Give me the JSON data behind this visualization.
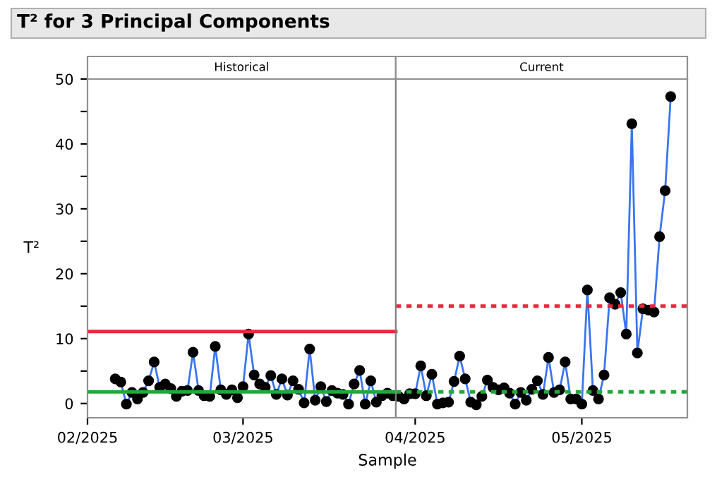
{
  "chart_data": {
    "type": "line",
    "title": "T² for 3 Principal Components",
    "xlabel": "Sample",
    "ylabel": "T²",
    "xlim": [
      "2025-02-01",
      "2025-05-20"
    ],
    "xticks": [
      {
        "value": "2025-02-01",
        "label": "02/2025"
      },
      {
        "value": "2025-03-01",
        "label": "03/2025"
      },
      {
        "value": "2025-04-01",
        "label": "04/2025"
      },
      {
        "value": "2025-05-01",
        "label": "05/2025"
      }
    ],
    "ylim": [
      -2.2,
      50
    ],
    "yticks": [
      0,
      {
        "value": 5,
        "label": null
      },
      10,
      {
        "value": 15,
        "label": null
      },
      20,
      {
        "value": 25,
        "label": null
      },
      30,
      {
        "value": 35,
        "label": null
      },
      40,
      {
        "value": 45,
        "label": null
      },
      50
    ],
    "grid": false,
    "legend": false,
    "marker": "circle",
    "annotations": [
      "Historical",
      "Current"
    ],
    "ref_lines": [
      {
        "axis": "x",
        "value": "2025-03-28T12:00",
        "color": "#808080",
        "line_style": "solid"
      }
    ],
    "series": [
      {
        "color": "#3a75f0",
        "line_style": "solid",
        "x": [
          "2025-02-06",
          "2025-02-07",
          "2025-02-08",
          "2025-02-09",
          "2025-02-10",
          "2025-02-11",
          "2025-02-12",
          "2025-02-13",
          "2025-02-14",
          "2025-02-15",
          "2025-02-16",
          "2025-02-17",
          "2025-02-18",
          "2025-02-19",
          "2025-02-20",
          "2025-02-21",
          "2025-02-22",
          "2025-02-23",
          "2025-02-24",
          "2025-02-25",
          "2025-02-26",
          "2025-02-27",
          "2025-02-28",
          "2025-03-01",
          "2025-03-02",
          "2025-03-03",
          "2025-03-04",
          "2025-03-05",
          "2025-03-06",
          "2025-03-07",
          "2025-03-08",
          "2025-03-09",
          "2025-03-10",
          "2025-03-11",
          "2025-03-12",
          "2025-03-13",
          "2025-03-14",
          "2025-03-15",
          "2025-03-16",
          "2025-03-17",
          "2025-03-18",
          "2025-03-19",
          "2025-03-20",
          "2025-03-21",
          "2025-03-22",
          "2025-03-23",
          "2025-03-24",
          "2025-03-25",
          "2025-03-26",
          "2025-03-27",
          "2025-03-28",
          "2025-03-29",
          "2025-03-30",
          "2025-03-31",
          "2025-04-01",
          "2025-04-02",
          "2025-04-03",
          "2025-04-04",
          "2025-04-05",
          "2025-04-06",
          "2025-04-07",
          "2025-04-08",
          "2025-04-09",
          "2025-04-10",
          "2025-04-11",
          "2025-04-12",
          "2025-04-13",
          "2025-04-14",
          "2025-04-15",
          "2025-04-16",
          "2025-04-17",
          "2025-04-18",
          "2025-04-19",
          "2025-04-20",
          "2025-04-21",
          "2025-04-22",
          "2025-04-23",
          "2025-04-24",
          "2025-04-25",
          "2025-04-26",
          "2025-04-27",
          "2025-04-28",
          "2025-04-29",
          "2025-04-30",
          "2025-05-01",
          "2025-05-02",
          "2025-05-03",
          "2025-05-04",
          "2025-05-05",
          "2025-05-06",
          "2025-05-07",
          "2025-05-08",
          "2025-05-09",
          "2025-05-10",
          "2025-05-11",
          "2025-05-12",
          "2025-05-13",
          "2025-05-14",
          "2025-05-15",
          "2025-05-16",
          "2025-05-17"
        ],
        "values": [
          3.8,
          3.3,
          -0.1,
          1.7,
          0.7,
          1.7,
          3.5,
          6.4,
          2.5,
          3.0,
          2.3,
          1.1,
          1.9,
          2.0,
          7.9,
          2.0,
          1.2,
          1.1,
          8.8,
          2.1,
          1.4,
          2.1,
          0.9,
          2.6,
          10.7,
          4.4,
          3.0,
          2.5,
          4.3,
          1.4,
          3.8,
          1.3,
          3.5,
          2.2,
          0.1,
          8.4,
          0.5,
          2.6,
          0.3,
          2.0,
          1.6,
          1.4,
          -0.1,
          3.0,
          5.1,
          -0.1,
          3.5,
          0.2,
          1.2,
          1.6,
          1.2,
          1.1,
          0.7,
          1.5,
          1.5,
          5.8,
          1.2,
          4.5,
          -0.1,
          0.1,
          0.2,
          3.4,
          7.3,
          3.8,
          0.2,
          -0.2,
          1.1,
          3.6,
          2.5,
          2.1,
          2.4,
          1.6,
          -0.1,
          1.7,
          0.5,
          2.2,
          3.5,
          1.4,
          7.1,
          1.7,
          2.1,
          6.4,
          0.7,
          0.7,
          -0.1,
          17.5,
          2.0,
          0.7,
          4.4,
          16.3,
          15.3,
          17.1,
          10.7,
          43.1,
          7.8,
          14.6,
          14.4,
          14.1,
          25.7,
          32.8,
          47.3
        ]
      },
      {
        "color": "#e8283c",
        "marker": "none",
        "line_style": "solid",
        "x": [
          "2025-02-01",
          "2025-03-28T12:00"
        ],
        "values": [
          11.1,
          11.1
        ]
      },
      {
        "color": "#e8283c",
        "marker": "none",
        "line_style": "dotted",
        "x": [
          "2025-03-28T12:00",
          "2025-05-20"
        ],
        "values": [
          15.0,
          15.0
        ]
      },
      {
        "color": "#22a83a",
        "marker": "none",
        "line_style": "solid",
        "x": [
          "2025-02-01",
          "2025-03-28T12:00"
        ],
        "values": [
          1.8,
          1.8
        ]
      },
      {
        "color": "#22a83a",
        "marker": "none",
        "line_style": "dotted",
        "x": [
          "2025-03-28T12:00",
          "2025-05-20"
        ],
        "values": [
          1.8,
          1.8
        ]
      }
    ]
  }
}
